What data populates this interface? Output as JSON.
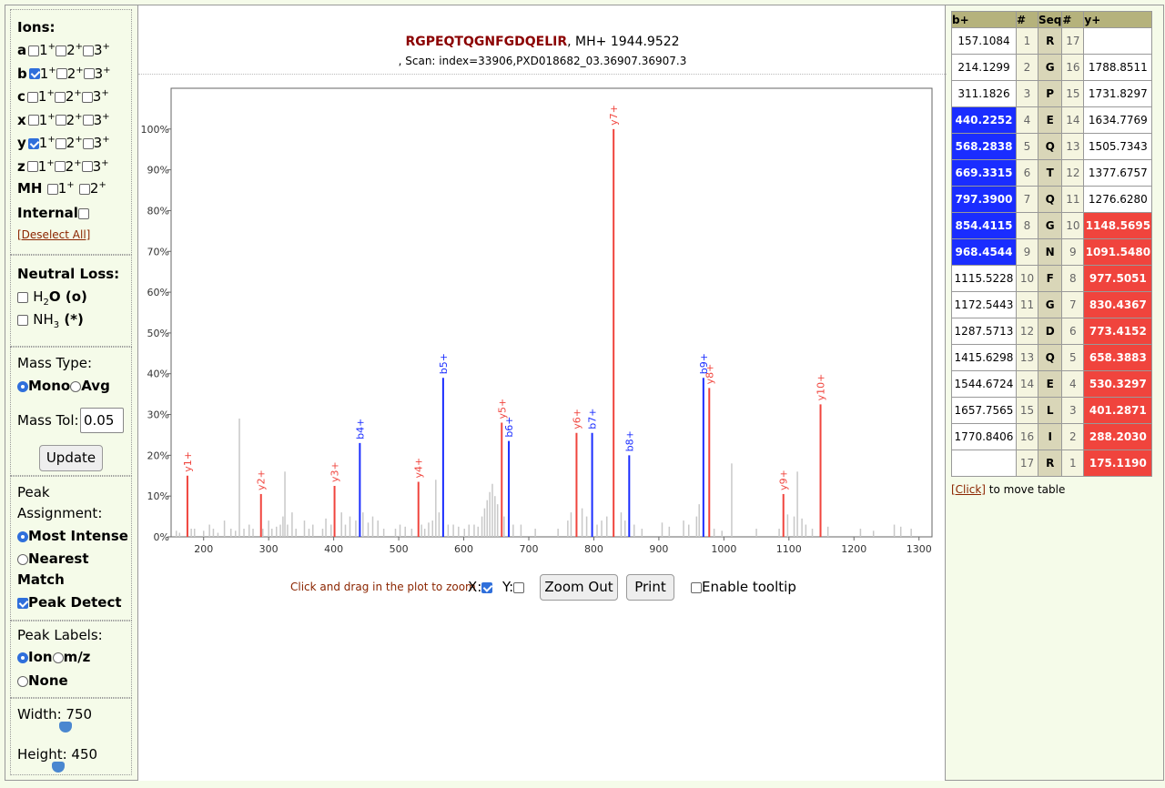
{
  "ions": {
    "title": "Ions:",
    "rows": [
      {
        "label": "a",
        "checked": [
          false,
          false,
          false
        ]
      },
      {
        "label": "b",
        "checked": [
          true,
          false,
          false
        ]
      },
      {
        "label": "c",
        "checked": [
          false,
          false,
          false
        ]
      },
      {
        "label": "x",
        "checked": [
          false,
          false,
          false
        ]
      },
      {
        "label": "y",
        "checked": [
          true,
          false,
          false
        ]
      },
      {
        "label": "z",
        "checked": [
          false,
          false,
          false
        ]
      }
    ],
    "charges": [
      "1",
      "2",
      "3"
    ],
    "charge_sign": "+",
    "mh_label": "MH",
    "internal_label": "Internal",
    "deselect_all": "[Deselect All]"
  },
  "neutral_loss": {
    "title": "Neutral Loss:",
    "h2o": {
      "pre": "H",
      "sub": "2",
      "post": "O (o)"
    },
    "nh3": {
      "pre": "NH",
      "sub": "3",
      "post": " (*)"
    }
  },
  "mass": {
    "title": "Mass Type:",
    "mono": "Mono",
    "avg": "Avg",
    "tol_label": "Mass Tol:",
    "tol_value": "0.05",
    "update": "Update"
  },
  "peak_assignment": {
    "title1": "Peak",
    "title2": "Assignment:",
    "most_intense": "Most Intense",
    "nearest1": "Nearest",
    "nearest2": "Match",
    "peak_detect": "Peak Detect"
  },
  "peak_labels": {
    "title": "Peak Labels:",
    "ion": "Ion",
    "mz": "m/z",
    "none": "None"
  },
  "size": {
    "width_label": "Width: 750",
    "height_label": "Height: 450"
  },
  "header": {
    "sequence": "RGPEQTQGNFGDQELIR",
    "mh": ", MH+ 1944.9522",
    "scan": ", Scan: index=33906,PXD018682_03.36907.36907.3"
  },
  "controls": {
    "zoom_hint": "Click and drag in the plot to zoom",
    "x_label": "X:",
    "y_label": "Y:",
    "zoom_out": "Zoom Out",
    "print": "Print",
    "tooltip": "Enable tooltip"
  },
  "table": {
    "headers": [
      "b+",
      "#",
      "Seq",
      "#",
      "y+"
    ],
    "rows": [
      {
        "b": "157.1084",
        "n": "1",
        "aa": "R",
        "m": "17",
        "y": "",
        "bh": false,
        "yh": false
      },
      {
        "b": "214.1299",
        "n": "2",
        "aa": "G",
        "m": "16",
        "y": "1788.8511",
        "bh": false,
        "yh": false
      },
      {
        "b": "311.1826",
        "n": "3",
        "aa": "P",
        "m": "15",
        "y": "1731.8297",
        "bh": false,
        "yh": false
      },
      {
        "b": "440.2252",
        "n": "4",
        "aa": "E",
        "m": "14",
        "y": "1634.7769",
        "bh": true,
        "yh": false
      },
      {
        "b": "568.2838",
        "n": "5",
        "aa": "Q",
        "m": "13",
        "y": "1505.7343",
        "bh": true,
        "yh": false
      },
      {
        "b": "669.3315",
        "n": "6",
        "aa": "T",
        "m": "12",
        "y": "1377.6757",
        "bh": true,
        "yh": false
      },
      {
        "b": "797.3900",
        "n": "7",
        "aa": "Q",
        "m": "11",
        "y": "1276.6280",
        "bh": true,
        "yh": false
      },
      {
        "b": "854.4115",
        "n": "8",
        "aa": "G",
        "m": "10",
        "y": "1148.5695",
        "bh": true,
        "yh": true
      },
      {
        "b": "968.4544",
        "n": "9",
        "aa": "N",
        "m": "9",
        "y": "1091.5480",
        "bh": true,
        "yh": true
      },
      {
        "b": "1115.5228",
        "n": "10",
        "aa": "F",
        "m": "8",
        "y": "977.5051",
        "bh": false,
        "yh": true
      },
      {
        "b": "1172.5443",
        "n": "11",
        "aa": "G",
        "m": "7",
        "y": "830.4367",
        "bh": false,
        "yh": true
      },
      {
        "b": "1287.5713",
        "n": "12",
        "aa": "D",
        "m": "6",
        "y": "773.4152",
        "bh": false,
        "yh": true
      },
      {
        "b": "1415.6298",
        "n": "13",
        "aa": "Q",
        "m": "5",
        "y": "658.3883",
        "bh": false,
        "yh": true
      },
      {
        "b": "1544.6724",
        "n": "14",
        "aa": "E",
        "m": "4",
        "y": "530.3297",
        "bh": false,
        "yh": true
      },
      {
        "b": "1657.7565",
        "n": "15",
        "aa": "L",
        "m": "3",
        "y": "401.2871",
        "bh": false,
        "yh": true
      },
      {
        "b": "1770.8406",
        "n": "16",
        "aa": "I",
        "m": "2",
        "y": "288.2030",
        "bh": false,
        "yh": true
      },
      {
        "b": "",
        "n": "17",
        "aa": "R",
        "m": "1",
        "y": "175.1190",
        "bh": false,
        "yh": true
      }
    ],
    "click": "[Click]",
    "move_text": " to move table"
  },
  "colors": {
    "b_ion": "#1a2dff",
    "y_ion": "#f0443d",
    "unassigned": "#c8c8c8",
    "sequence": "#8b0000"
  },
  "chart_data": {
    "type": "bar",
    "xlim": [
      150,
      1320
    ],
    "ylim": [
      0,
      1.1
    ],
    "x_ticks": [
      200,
      300,
      400,
      500,
      600,
      700,
      800,
      900,
      1000,
      1100,
      1200,
      1300
    ],
    "y_ticks": [
      0,
      0.1,
      0.2,
      0.3,
      0.4,
      0.5,
      0.6,
      0.7,
      0.8,
      0.9,
      1.0
    ],
    "y_tick_labels": [
      "0%",
      "10%",
      "20%",
      "30%",
      "40%",
      "50%",
      "60%",
      "70%",
      "80%",
      "90%",
      "100%"
    ],
    "labeled_peaks": [
      {
        "label": "y1+",
        "mz": 175.1,
        "rel": 0.15,
        "ion": "y"
      },
      {
        "label": "y2+",
        "mz": 288.2,
        "rel": 0.105,
        "ion": "y"
      },
      {
        "label": "y3+",
        "mz": 401.3,
        "rel": 0.125,
        "ion": "y"
      },
      {
        "label": "b4+",
        "mz": 440.2,
        "rel": 0.23,
        "ion": "b"
      },
      {
        "label": "y4+",
        "mz": 530.3,
        "rel": 0.135,
        "ion": "y"
      },
      {
        "label": "b5+",
        "mz": 568.3,
        "rel": 0.39,
        "ion": "b"
      },
      {
        "label": "y5+",
        "mz": 658.4,
        "rel": 0.28,
        "ion": "y"
      },
      {
        "label": "b6+",
        "mz": 669.3,
        "rel": 0.235,
        "ion": "b"
      },
      {
        "label": "y6+",
        "mz": 773.4,
        "rel": 0.255,
        "ion": "y"
      },
      {
        "label": "b7+",
        "mz": 797.4,
        "rel": 0.255,
        "ion": "b"
      },
      {
        "label": "y7+",
        "mz": 830.4,
        "rel": 1.0,
        "ion": "y"
      },
      {
        "label": "b8+",
        "mz": 854.4,
        "rel": 0.2,
        "ion": "b"
      },
      {
        "label": "b9+",
        "mz": 968.5,
        "rel": 0.39,
        "ion": "b"
      },
      {
        "label": "y8+",
        "mz": 977.5,
        "rel": 0.365,
        "ion": "y"
      },
      {
        "label": "y9+",
        "mz": 1091.5,
        "rel": 0.105,
        "ion": "y"
      },
      {
        "label": "y10+",
        "mz": 1148.6,
        "rel": 0.325,
        "ion": "y"
      }
    ],
    "unlabeled_peaks": [
      [
        158,
        0.015
      ],
      [
        163,
        0.01
      ],
      [
        181,
        0.02
      ],
      [
        186,
        0.02
      ],
      [
        200,
        0.015
      ],
      [
        209,
        0.03
      ],
      [
        215,
        0.02
      ],
      [
        222,
        0.01
      ],
      [
        232,
        0.04
      ],
      [
        242,
        0.02
      ],
      [
        249,
        0.015
      ],
      [
        255,
        0.29
      ],
      [
        262,
        0.02
      ],
      [
        270,
        0.03
      ],
      [
        276,
        0.02
      ],
      [
        291,
        0.02
      ],
      [
        300,
        0.04
      ],
      [
        305,
        0.02
      ],
      [
        312,
        0.025
      ],
      [
        318,
        0.03
      ],
      [
        322,
        0.05
      ],
      [
        325,
        0.16
      ],
      [
        329,
        0.03
      ],
      [
        336,
        0.06
      ],
      [
        342,
        0.02
      ],
      [
        355,
        0.04
      ],
      [
        362,
        0.02
      ],
      [
        368,
        0.03
      ],
      [
        383,
        0.02
      ],
      [
        388,
        0.045
      ],
      [
        396,
        0.03
      ],
      [
        412,
        0.06
      ],
      [
        418,
        0.03
      ],
      [
        425,
        0.05
      ],
      [
        434,
        0.04
      ],
      [
        445,
        0.06
      ],
      [
        453,
        0.035
      ],
      [
        460,
        0.05
      ],
      [
        468,
        0.04
      ],
      [
        477,
        0.02
      ],
      [
        495,
        0.02
      ],
      [
        502,
        0.03
      ],
      [
        510,
        0.025
      ],
      [
        520,
        0.02
      ],
      [
        535,
        0.03
      ],
      [
        540,
        0.02
      ],
      [
        546,
        0.035
      ],
      [
        552,
        0.04
      ],
      [
        557,
        0.14
      ],
      [
        562,
        0.06
      ],
      [
        576,
        0.03
      ],
      [
        584,
        0.03
      ],
      [
        592,
        0.025
      ],
      [
        601,
        0.02
      ],
      [
        608,
        0.03
      ],
      [
        616,
        0.03
      ],
      [
        622,
        0.025
      ],
      [
        628,
        0.05
      ],
      [
        632,
        0.07
      ],
      [
        636,
        0.09
      ],
      [
        640,
        0.11
      ],
      [
        644,
        0.13
      ],
      [
        648,
        0.1
      ],
      [
        652,
        0.08
      ],
      [
        662,
        0.05
      ],
      [
        676,
        0.03
      ],
      [
        688,
        0.03
      ],
      [
        710,
        0.02
      ],
      [
        745,
        0.02
      ],
      [
        760,
        0.04
      ],
      [
        765,
        0.06
      ],
      [
        782,
        0.07
      ],
      [
        789,
        0.05
      ],
      [
        805,
        0.03
      ],
      [
        812,
        0.04
      ],
      [
        820,
        0.05
      ],
      [
        842,
        0.06
      ],
      [
        848,
        0.04
      ],
      [
        862,
        0.03
      ],
      [
        874,
        0.02
      ],
      [
        905,
        0.035
      ],
      [
        916,
        0.025
      ],
      [
        938,
        0.04
      ],
      [
        946,
        0.03
      ],
      [
        958,
        0.05
      ],
      [
        962,
        0.08
      ],
      [
        985,
        0.02
      ],
      [
        997,
        0.015
      ],
      [
        1012,
        0.18
      ],
      [
        1050,
        0.02
      ],
      [
        1085,
        0.02
      ],
      [
        1098,
        0.055
      ],
      [
        1108,
        0.05
      ],
      [
        1113,
        0.16
      ],
      [
        1120,
        0.045
      ],
      [
        1126,
        0.03
      ],
      [
        1136,
        0.02
      ],
      [
        1160,
        0.025
      ],
      [
        1210,
        0.02
      ],
      [
        1230,
        0.015
      ],
      [
        1262,
        0.03
      ],
      [
        1272,
        0.025
      ],
      [
        1288,
        0.02
      ]
    ]
  }
}
